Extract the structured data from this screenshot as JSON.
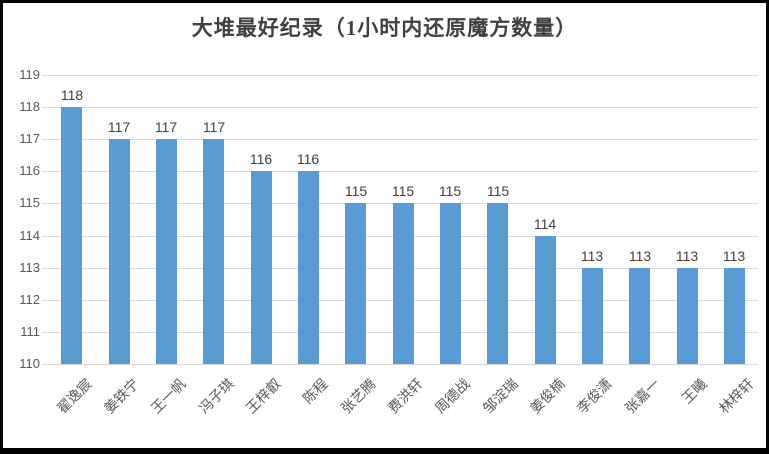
{
  "window": {
    "background": "#ffffff",
    "frame_border_color": "#000000"
  },
  "chart_data": {
    "type": "bar",
    "title": "大堆最好纪录（1小时内还原魔方数量）",
    "categories": [
      "翟逸宸",
      "姜铁宁",
      "王一帆",
      "冯子琪",
      "王梓叡",
      "陈程",
      "张艺腾",
      "费洪轩",
      "周德战",
      "邹淀瑞",
      "姜俊楠",
      "李俊潇",
      "张嘉一",
      "王曦",
      "林梓轩"
    ],
    "values": [
      118,
      117,
      117,
      117,
      116,
      116,
      115,
      115,
      115,
      115,
      114,
      113,
      113,
      113,
      113
    ],
    "xlabel": "",
    "ylabel": "",
    "ylim": [
      110,
      119
    ],
    "ytick_step": 1,
    "yticks": [
      110,
      111,
      112,
      113,
      114,
      115,
      116,
      117,
      118,
      119
    ],
    "grid": true,
    "legend_position": "none",
    "data_labels": true,
    "colors": {
      "bar": "#5B9BD5",
      "gridline": "#D9D9D9",
      "y_axis_labels": "#595959",
      "data_labels": "#404040",
      "category_labels": "#595959",
      "title": "#404040"
    }
  }
}
